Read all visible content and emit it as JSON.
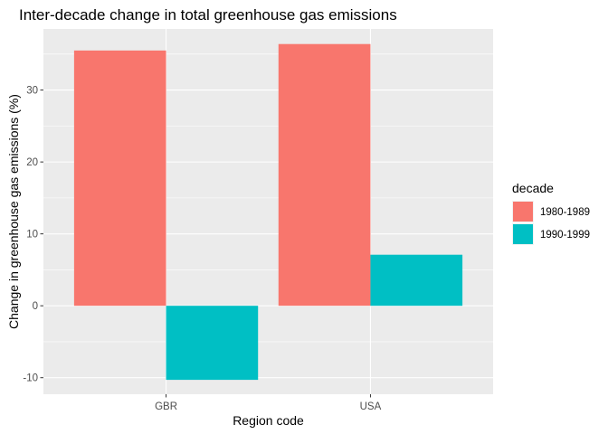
{
  "chart_data": {
    "type": "bar",
    "title": "Inter-decade change in total greenhouse gas emissions",
    "xlabel": "Region code",
    "ylabel": "Change in greenhouse gas emissions (%)",
    "categories": [
      "GBR",
      "USA"
    ],
    "series": [
      {
        "name": "1980-1989",
        "color": "#F8766D",
        "values": [
          35.5,
          36.4
        ]
      },
      {
        "name": "1990-1999",
        "color": "#00BFC4",
        "values": [
          -10.3,
          7.1
        ]
      }
    ],
    "ylim": [
      -12.3,
      38.5
    ],
    "yticks": [
      -10,
      0,
      10,
      20,
      30
    ],
    "ytick_labels": [
      "-10",
      "0",
      "10",
      "20",
      "30"
    ],
    "grid": true,
    "panel_background": "#EBEBEB",
    "grid_color": "#FFFFFF",
    "legend": {
      "title": "decade",
      "position": "right"
    }
  }
}
